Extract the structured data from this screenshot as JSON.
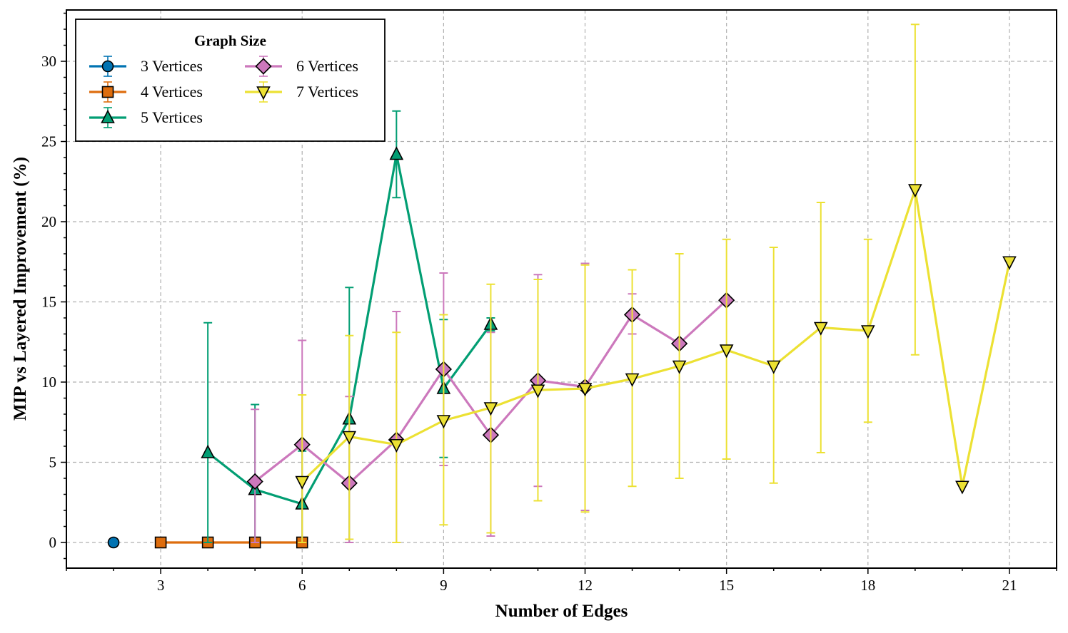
{
  "chart_data": {
    "type": "line",
    "xlabel": "Number of Edges",
    "ylabel": "MIP vs Layered Improvement (%)",
    "xlim": [
      1,
      22
    ],
    "ylim": [
      -1.6,
      33.2
    ],
    "xticks": [
      3,
      6,
      9,
      12,
      15,
      18,
      21
    ],
    "xtick_labels": [
      "3",
      "6",
      "9",
      "12",
      "15",
      "18",
      "21"
    ],
    "yticks": [
      0,
      5,
      10,
      15,
      20,
      25,
      30
    ],
    "ytick_labels": [
      "0",
      "5",
      "10",
      "15",
      "20",
      "25",
      "30"
    ],
    "grid": true,
    "legend": {
      "title": "Graph Size",
      "position": "top-left",
      "columns": 2
    },
    "series": [
      {
        "name": "3 Vertices",
        "color": "#0173b2",
        "marker": "circle",
        "points": [
          {
            "x": 2,
            "y": 0.0,
            "lo": 0.0,
            "hi": 0.0
          }
        ]
      },
      {
        "name": "4 Vertices",
        "color": "#de6d0e",
        "marker": "square",
        "points": [
          {
            "x": 3,
            "y": 0.0,
            "lo": 0.0,
            "hi": 0.0
          },
          {
            "x": 4,
            "y": 0.0,
            "lo": 0.0,
            "hi": 0.0
          },
          {
            "x": 5,
            "y": 0.0,
            "lo": 0.0,
            "hi": 0.0
          },
          {
            "x": 6,
            "y": 0.0,
            "lo": 0.0,
            "hi": 0.0
          }
        ]
      },
      {
        "name": "5 Vertices",
        "color": "#029e73",
        "marker": "triangle-up",
        "points": [
          {
            "x": 4,
            "y": 5.6,
            "lo": 0.0,
            "hi": 13.7
          },
          {
            "x": 5,
            "y": 3.3,
            "lo": 0.0,
            "hi": 8.6
          },
          {
            "x": 6,
            "y": 2.4,
            "lo": 0.0,
            "hi": 5.7
          },
          {
            "x": 7,
            "y": 7.7,
            "lo": 0.0,
            "hi": 15.9
          },
          {
            "x": 8,
            "y": 24.2,
            "lo": 21.5,
            "hi": 26.9
          },
          {
            "x": 9,
            "y": 9.6,
            "lo": 5.3,
            "hi": 13.9
          },
          {
            "x": 10,
            "y": 13.6,
            "lo": 13.2,
            "hi": 14.0
          }
        ]
      },
      {
        "name": "6 Vertices",
        "color": "#cc78bc",
        "marker": "diamond",
        "points": [
          {
            "x": 5,
            "y": 3.8,
            "lo": 0.0,
            "hi": 8.3
          },
          {
            "x": 6,
            "y": 6.1,
            "lo": 0.0,
            "hi": 12.6
          },
          {
            "x": 7,
            "y": 3.7,
            "lo": 0.0,
            "hi": 9.1
          },
          {
            "x": 8,
            "y": 6.4,
            "lo": 0.0,
            "hi": 14.4
          },
          {
            "x": 9,
            "y": 10.8,
            "lo": 4.8,
            "hi": 16.8
          },
          {
            "x": 10,
            "y": 6.7,
            "lo": 0.4,
            "hi": 13.1
          },
          {
            "x": 11,
            "y": 10.1,
            "lo": 3.5,
            "hi": 16.7
          },
          {
            "x": 12,
            "y": 9.7,
            "lo": 2.0,
            "hi": 17.4
          },
          {
            "x": 13,
            "y": 14.2,
            "lo": 13.0,
            "hi": 15.5
          },
          {
            "x": 14,
            "y": 12.4,
            "lo": 12.4,
            "hi": 12.4
          },
          {
            "x": 15,
            "y": 15.1,
            "lo": 15.1,
            "hi": 15.1
          }
        ]
      },
      {
        "name": "7 Vertices",
        "color": "#ece133",
        "marker": "triangle-down",
        "points": [
          {
            "x": 6,
            "y": 3.8,
            "lo": 0.0,
            "hi": 9.2
          },
          {
            "x": 7,
            "y": 6.6,
            "lo": 0.2,
            "hi": 12.9
          },
          {
            "x": 8,
            "y": 6.1,
            "lo": 0.0,
            "hi": 13.1
          },
          {
            "x": 9,
            "y": 7.6,
            "lo": 1.1,
            "hi": 14.2
          },
          {
            "x": 10,
            "y": 8.4,
            "lo": 0.6,
            "hi": 16.1
          },
          {
            "x": 11,
            "y": 9.5,
            "lo": 2.6,
            "hi": 16.4
          },
          {
            "x": 12,
            "y": 9.6,
            "lo": 1.9,
            "hi": 17.3
          },
          {
            "x": 13,
            "y": 10.2,
            "lo": 3.5,
            "hi": 17.0
          },
          {
            "x": 14,
            "y": 11.0,
            "lo": 4.0,
            "hi": 18.0
          },
          {
            "x": 15,
            "y": 12.0,
            "lo": 5.2,
            "hi": 18.9
          },
          {
            "x": 16,
            "y": 11.0,
            "lo": 3.7,
            "hi": 18.4
          },
          {
            "x": 17,
            "y": 13.4,
            "lo": 5.6,
            "hi": 21.2
          },
          {
            "x": 18,
            "y": 13.2,
            "lo": 7.5,
            "hi": 18.9
          },
          {
            "x": 19,
            "y": 22.0,
            "lo": 11.7,
            "hi": 32.3
          },
          {
            "x": 20,
            "y": 3.5,
            "lo": 3.5,
            "hi": 3.5
          },
          {
            "x": 21,
            "y": 17.5,
            "lo": 17.5,
            "hi": 17.5
          }
        ]
      }
    ]
  }
}
